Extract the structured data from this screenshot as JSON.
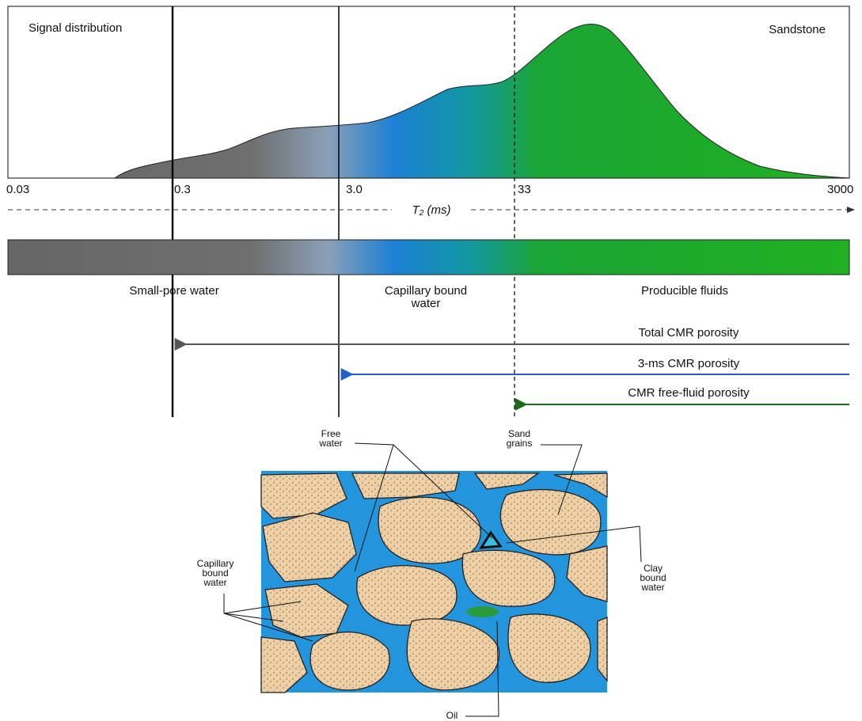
{
  "plot": {
    "title": "Signal distribution",
    "rock": "Sandstone",
    "axis_label": "T₂ (ms)",
    "ticks": [
      "0.03",
      "0.3",
      "3.0",
      "33",
      "3000"
    ]
  },
  "zones": [
    "Small-pore water",
    "Capillary bound water",
    "Producible fluids"
  ],
  "porosities": [
    "Total CMR porosity",
    "3-ms CMR porosity",
    "CMR free-fluid porosity"
  ],
  "pore_labels": {
    "free_water": "Free water",
    "sand_grains": "Sand grains",
    "capillary_bound_water": "Capillary bound water",
    "clay_bound_water": "Clay bound water",
    "oil": "Oil"
  }
}
